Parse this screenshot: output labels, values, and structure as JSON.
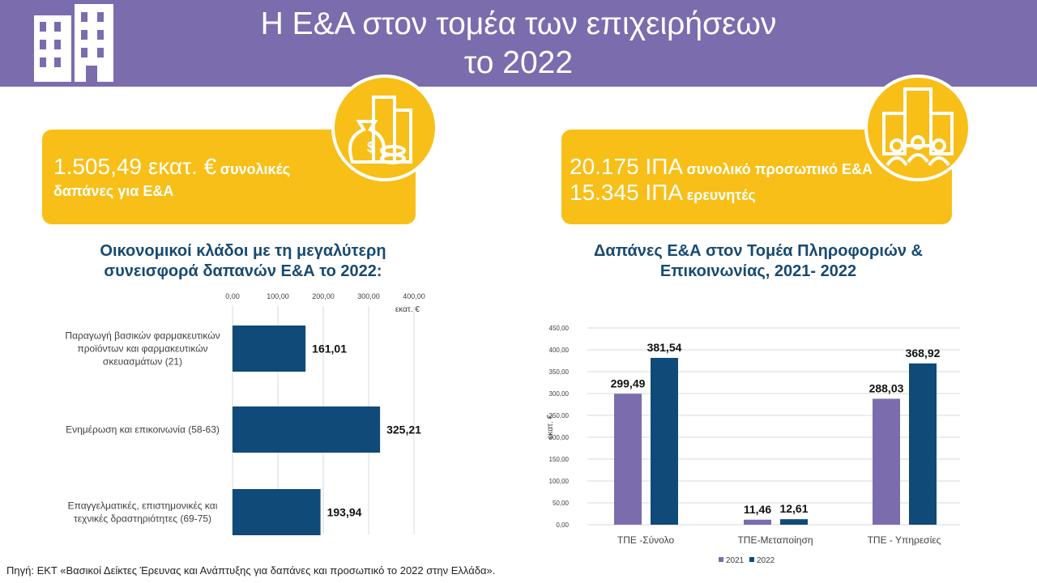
{
  "header": {
    "title_line1": "Η Ε&Α στον τομέα των επιχειρήσεων",
    "title_line2": "το 2022",
    "color": "#7b6cae"
  },
  "kpi_left": {
    "value": "1.505,49 εκατ. €",
    "text1": "συνολικές",
    "text2": "δαπάνες για Ε&Α"
  },
  "kpi_right": {
    "line1_value": "20.175 ΙΠΑ",
    "line1_text": "συνολικό προσωπικό Ε&Α",
    "line2_value": "15.345 ΙΠΑ",
    "line2_text": "ερευνητές"
  },
  "source": "Πηγή: ΕΚΤ «Βασικοί Δείκτες Έρευνας και Ανάπτυξης για δαπάνες και προσωπικό το 2022 στην Ελλάδα».",
  "chart_data": [
    {
      "type": "bar",
      "orientation": "horizontal",
      "title": "Οικονομικοί κλάδοι με τη μεγαλύτερη συνεισφορά δαπανών Ε&Α το 2022:",
      "title_line1": "Οικονομικοί κλάδοι με τη μεγαλύτερη",
      "title_line2": "συνεισφορά δαπανών Ε&Α το 2022:",
      "categories": [
        [
          "Παραγωγή βασικών φαρμακευτικών",
          "προϊόντων και φαρμακευτικών",
          "σκευασμάτων (21)"
        ],
        [
          "Ενημέρωση και επικοινωνία  (58-63)"
        ],
        [
          "Επαγγελματικές, επιστημονικές και",
          "τεχνικές  δραστηριότητες (69-75)"
        ]
      ],
      "values": [
        161.01,
        325.21,
        193.94
      ],
      "value_labels": [
        "161,01",
        "325,21",
        "193,94"
      ],
      "xlim": [
        0,
        400
      ],
      "ticks": [
        "0,00",
        "100,00",
        "200,00",
        "300,00",
        "400,00"
      ],
      "xlabel": "εκατ. €",
      "color": "#0f4a78",
      "grid": true
    },
    {
      "type": "bar",
      "title": "Δαπάνες Ε&Α στον Τομέα Πληροφοριών & Επικοινωνίας, 2021- 2022",
      "title_line1": "Δαπάνες Ε&Α στον Τομέα Πληροφοριών &",
      "title_line2": "Επικοινωνίας, 2021- 2022",
      "categories": [
        "ΤΠΕ -Σύνολο",
        "ΤΠΕ-Μεταποίηση",
        "ΤΠΕ - Υπηρεσίες"
      ],
      "series": [
        {
          "name": "2021",
          "values": [
            299.49,
            11.46,
            288.03
          ],
          "labels": [
            "299,49",
            "11,46",
            "288,03"
          ],
          "color": "#7b6cae"
        },
        {
          "name": "2022",
          "values": [
            381.54,
            12.61,
            368.92
          ],
          "labels": [
            "381,54",
            "12,61",
            "368,92"
          ],
          "color": "#0f4a78"
        }
      ],
      "ylim": [
        0,
        450
      ],
      "ticks": [
        "0,00",
        "50,00",
        "100,00",
        "150,00",
        "200,00",
        "250,00",
        "300,00",
        "350,00",
        "400,00",
        "450,00"
      ],
      "ylabel": "εκατ. €",
      "legend": "bottom",
      "grid": true
    }
  ]
}
